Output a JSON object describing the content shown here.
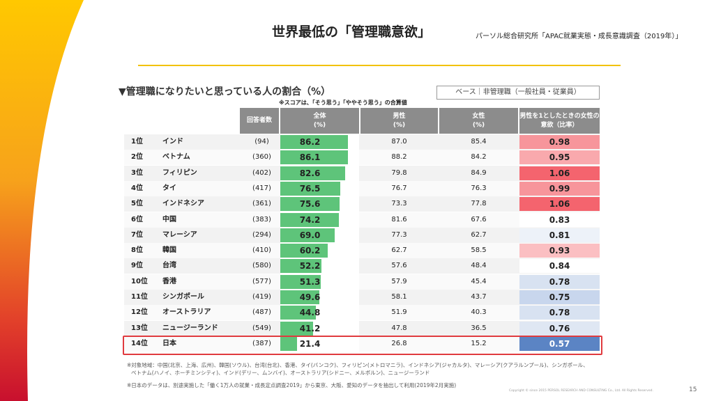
{
  "title": "世界最低の「管理職意欲」",
  "source": "パーソル総合研究所「APAC就業実態・成長意識調査（2019年）」",
  "subtitle": "▼管理職になりたいと思っている人の割合（%）",
  "note": "※スコアは、「そう思う」「ややそう思う」の合算値",
  "base_label": "ベース｜非管理職（一般社員・従業員）",
  "headers": {
    "n": "回答者数",
    "total": "全体\n(%)",
    "male": "男性\n(%)",
    "female": "女性\n(%)",
    "ratio": "男性を1としたときの女性の\n意欲（比率）"
  },
  "colors": {
    "bar": "#5ec47a",
    "header": "#8c8c8c",
    "highlight": "#e03a3e",
    "ratio_high": "#f4646e",
    "ratio_low": "#5b84c4"
  },
  "rows": [
    {
      "rank": "1位",
      "country": "インド",
      "n": "(94)",
      "total": "86.2",
      "male": "87.0",
      "female": "85.4",
      "ratio": "0.98"
    },
    {
      "rank": "2位",
      "country": "ベトナム",
      "n": "(360)",
      "total": "86.1",
      "male": "88.2",
      "female": "84.2",
      "ratio": "0.95"
    },
    {
      "rank": "3位",
      "country": "フィリピン",
      "n": "(402)",
      "total": "82.6",
      "male": "79.8",
      "female": "84.9",
      "ratio": "1.06"
    },
    {
      "rank": "4位",
      "country": "タイ",
      "n": "(417)",
      "total": "76.5",
      "male": "76.7",
      "female": "76.3",
      "ratio": "0.99"
    },
    {
      "rank": "5位",
      "country": "インドネシア",
      "n": "(361)",
      "total": "75.6",
      "male": "73.3",
      "female": "77.8",
      "ratio": "1.06"
    },
    {
      "rank": "6位",
      "country": "中国",
      "n": "(383)",
      "total": "74.2",
      "male": "81.6",
      "female": "67.6",
      "ratio": "0.83"
    },
    {
      "rank": "7位",
      "country": "マレーシア",
      "n": "(294)",
      "total": "69.0",
      "male": "77.3",
      "female": "62.7",
      "ratio": "0.81"
    },
    {
      "rank": "8位",
      "country": "韓国",
      "n": "(410)",
      "total": "60.2",
      "male": "62.7",
      "female": "58.5",
      "ratio": "0.93"
    },
    {
      "rank": "9位",
      "country": "台湾",
      "n": "(580)",
      "total": "52.2",
      "male": "57.6",
      "female": "48.4",
      "ratio": "0.84"
    },
    {
      "rank": "10位",
      "country": "香港",
      "n": "(577)",
      "total": "51.3",
      "male": "57.9",
      "female": "45.4",
      "ratio": "0.78"
    },
    {
      "rank": "11位",
      "country": "シンガポール",
      "n": "(419)",
      "total": "49.6",
      "male": "58.1",
      "female": "43.7",
      "ratio": "0.75"
    },
    {
      "rank": "12位",
      "country": "オーストラリア",
      "n": "(487)",
      "total": "44.8",
      "male": "51.9",
      "female": "40.3",
      "ratio": "0.78"
    },
    {
      "rank": "13位",
      "country": "ニュージーランド",
      "n": "(549)",
      "total": "41.2",
      "male": "47.8",
      "female": "36.5",
      "ratio": "0.76"
    },
    {
      "rank": "14位",
      "country": "日本",
      "n": "(387)",
      "total": "21.4",
      "male": "26.8",
      "female": "15.2",
      "ratio": "0.57"
    }
  ],
  "footnotes": [
    "※対象地域：中国(北京、上海、広州)、韓国(ソウル)、台湾(台北)、香港、タイ(バンコク)、フィリピン(メトロマニラ)、インドネシア(ジャカルタ)、マレーシア(クアラルンプール)、シンガポール、",
    "ベトナム(ハノイ、ホーチミンシティ)、インド(デリー、ムンバイ)、オーストラリア(シドニー、メルボルン)、ニュージーランド",
    "※日本のデータは、別途実施した「働く1万人の就業・成長定点調査2019」から東京、大阪、愛知のデータを抽出して利用(2019年2月実施)"
  ],
  "copyright": "Copyright © since 2015 PERSOL RESEARCH AND CONSULTING Co., Ltd. All Rights Reserved.",
  "page_number": "15"
}
